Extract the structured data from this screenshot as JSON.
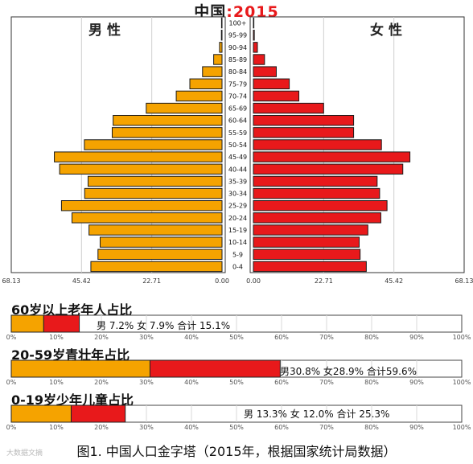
{
  "title": {
    "country": "中国",
    "separator": ":",
    "year": "2015"
  },
  "chart_data": [
    {
      "type": "bar",
      "orientation": "horizontal-pyramid",
      "categories": [
        "0-4",
        "5-9",
        "10-14",
        "15-19",
        "20-24",
        "25-29",
        "30-34",
        "35-39",
        "40-44",
        "45-49",
        "50-54",
        "55-59",
        "60-64",
        "65-69",
        "70-74",
        "75-79",
        "80-84",
        "85-89",
        "90-94",
        "95-99",
        "100+"
      ],
      "series": [
        {
          "name": "男 性",
          "color": "#f5a300",
          "values": [
            42.4,
            40.1,
            39.4,
            43.0,
            48.5,
            51.9,
            44.4,
            43.3,
            52.5,
            54.2,
            44.5,
            35.5,
            35.2,
            24.5,
            14.8,
            10.4,
            6.3,
            2.7,
            0.8,
            0.2,
            0.05
          ]
        },
        {
          "name": "女 性",
          "color": "#e8191b",
          "values": [
            36.5,
            34.5,
            34.2,
            37.0,
            41.2,
            43.2,
            40.8,
            40.0,
            48.3,
            50.6,
            41.4,
            32.4,
            32.4,
            22.7,
            14.7,
            11.6,
            7.4,
            3.6,
            1.3,
            0.3,
            0.1
          ]
        }
      ],
      "xlim": [
        0,
        68.13
      ],
      "xticks_left": [
        "68.13",
        "45.42",
        "22.71",
        "0.00"
      ],
      "xticks_right": [
        "0.00",
        "22.71",
        "45.42",
        "68.13"
      ],
      "grid": true
    },
    {
      "type": "bar",
      "orientation": "horizontal-stacked",
      "title": "60岁以上老年人占比",
      "series": [
        {
          "name": "男",
          "value": 7.2,
          "color": "#f5a300"
        },
        {
          "name": "女",
          "value": 7.9,
          "color": "#e8191b"
        }
      ],
      "label": "男 7.2%  女 7.9%  合计 15.1%",
      "xlim": [
        0,
        100
      ],
      "xticks": [
        "0%",
        "10%",
        "20%",
        "30%",
        "40%",
        "50%",
        "60%",
        "70%",
        "80%",
        "90%",
        "100%"
      ]
    },
    {
      "type": "bar",
      "orientation": "horizontal-stacked",
      "title": "20-59岁青壮年占比",
      "series": [
        {
          "name": "男",
          "value": 30.8,
          "color": "#f5a300"
        },
        {
          "name": "女",
          "value": 28.9,
          "color": "#e8191b"
        }
      ],
      "label": "男30.8%  女28.9%  合计59.6%",
      "xlim": [
        0,
        100
      ],
      "xticks": [
        "0%",
        "10%",
        "20%",
        "30%",
        "40%",
        "50%",
        "60%",
        "70%",
        "80%",
        "90%",
        "100%"
      ]
    },
    {
      "type": "bar",
      "orientation": "horizontal-stacked",
      "title": "0-19岁少年儿童占比",
      "series": [
        {
          "name": "男",
          "value": 13.3,
          "color": "#f5a300"
        },
        {
          "name": "女",
          "value": 12.0,
          "color": "#e8191b"
        }
      ],
      "label": "男 13.3%  女 12.0%  合计  25.3%",
      "xlim": [
        0,
        100
      ],
      "xticks": [
        "0%",
        "10%",
        "20%",
        "30%",
        "40%",
        "50%",
        "60%",
        "70%",
        "80%",
        "90%",
        "100%"
      ]
    }
  ],
  "caption": "图1. 中国人口金字塔（2015年，根据国家统计局数据）",
  "watermark": "大数据文摘"
}
